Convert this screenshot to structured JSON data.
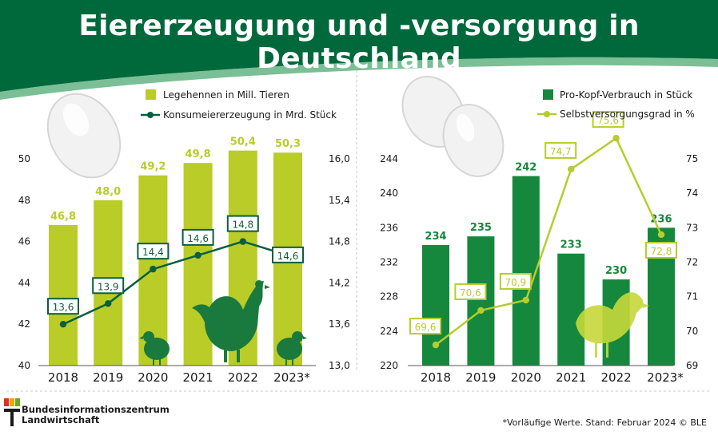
{
  "title": "Eiererzeugung und -versorgung in Deutschland",
  "footnote": "*Vorläufige Werte. Stand: Februar 2024 © BLE",
  "logo": {
    "line1": "Bundesinformationszentrum",
    "line2": "Landwirtschaft"
  },
  "colors": {
    "header_green": "#00693c",
    "light_green": "#b9cc28",
    "dark_green": "#16883d",
    "line_dark": "#0b5e3e",
    "line_light": "#b6cd2c"
  },
  "chart_data": [
    {
      "type": "bar",
      "categories": [
        "2018",
        "2019",
        "2020",
        "2021",
        "2022",
        "2023*"
      ],
      "series": [
        {
          "name": "Legehennen in Mill. Tieren",
          "type": "bar",
          "axis": "left",
          "values": [
            46.8,
            48.0,
            49.2,
            49.8,
            50.4,
            50.3
          ],
          "labels": [
            "46,8",
            "48,0",
            "49,2",
            "49,8",
            "50,4",
            "50,3"
          ]
        },
        {
          "name": "Konsumeiererzeugung in Mrd. Stück",
          "type": "line",
          "axis": "right",
          "values": [
            13.6,
            13.9,
            14.4,
            14.6,
            14.8,
            14.6
          ],
          "labels": [
            "13,6",
            "13,9",
            "14,4",
            "14,6",
            "14,8",
            "14,6"
          ]
        }
      ],
      "y_left": {
        "min": 40,
        "max": 50,
        "ticks": [
          "40",
          "42",
          "44",
          "46",
          "48",
          "50"
        ]
      },
      "y_right": {
        "min": 13.0,
        "max": 16.0,
        "ticks": [
          "13,0",
          "13,6",
          "14,2",
          "14,8",
          "15,4",
          "16,0"
        ]
      },
      "legend_position": "top-right",
      "grid": false
    },
    {
      "type": "bar",
      "categories": [
        "2018",
        "2019",
        "2020",
        "2021",
        "2022",
        "2023*"
      ],
      "series": [
        {
          "name": "Pro-Kopf-Verbrauch in Stück",
          "type": "bar",
          "axis": "left",
          "values": [
            234,
            235,
            242,
            233,
            230,
            236
          ],
          "labels": [
            "234",
            "235",
            "242",
            "233",
            "230",
            "236"
          ]
        },
        {
          "name": "Selbstversorgungsgrad in %",
          "type": "line",
          "axis": "right",
          "values": [
            69.6,
            70.6,
            70.9,
            74.7,
            75.6,
            72.8
          ],
          "labels": [
            "69,6",
            "70,6",
            "70,9",
            "74,7",
            "75,6",
            "72,8"
          ]
        }
      ],
      "y_left": {
        "min": 220,
        "max": 244,
        "ticks": [
          "220",
          "224",
          "228",
          "232",
          "236",
          "240",
          "244"
        ]
      },
      "y_right": {
        "min": 69,
        "max": 75,
        "ticks": [
          "69",
          "70",
          "71",
          "72",
          "73",
          "74",
          "75"
        ]
      },
      "legend_position": "top-right",
      "grid": false
    }
  ]
}
